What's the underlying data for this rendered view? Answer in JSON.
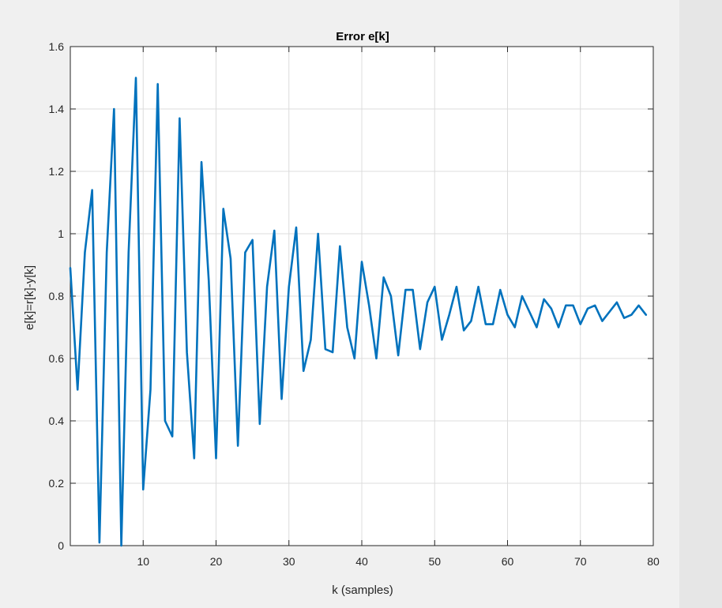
{
  "colors": {
    "background": "#f0f0f0",
    "axes_background": "#ffffff",
    "line": "#0072bd",
    "grid": "#dcdcdc",
    "axis": "#262626"
  },
  "chart_data": {
    "type": "line",
    "title": "Error e[k]",
    "xlabel": "k (samples)",
    "ylabel": "e[k]=r[k]-y[k]",
    "xlim": [
      0,
      80
    ],
    "ylim": [
      0,
      1.6
    ],
    "xticks": [
      10,
      20,
      30,
      40,
      50,
      60,
      70,
      80
    ],
    "xtick_labels": [
      "10",
      "20",
      "30",
      "40",
      "50",
      "60",
      "70",
      "80"
    ],
    "yticks": [
      0,
      0.2,
      0.4,
      0.6,
      0.8,
      1,
      1.2,
      1.4,
      1.6
    ],
    "ytick_labels": [
      "0",
      "0.2",
      "0.4",
      "0.6",
      "0.8",
      "1",
      "1.2",
      "1.4",
      "1.6"
    ],
    "grid": true,
    "series": [
      {
        "color": "#0072bd",
        "x": [
          0,
          1,
          2,
          3,
          4,
          5,
          6,
          7,
          8,
          9,
          10,
          11,
          12,
          13,
          14,
          15,
          16,
          17,
          18,
          19,
          20,
          21,
          22,
          23,
          24,
          25,
          26,
          27,
          28,
          29,
          30,
          31,
          32,
          33,
          34,
          35,
          36,
          37,
          38,
          39,
          40,
          41,
          42,
          43,
          44,
          45,
          46,
          47,
          48,
          49,
          50,
          51,
          52,
          53,
          54,
          55,
          56,
          57,
          58,
          59,
          60,
          61,
          62,
          63,
          64,
          65,
          66,
          67,
          68,
          69,
          70,
          71,
          72,
          73,
          74,
          75,
          76,
          77,
          78,
          79
        ],
        "y": [
          0.89,
          0.5,
          0.94,
          1.14,
          0.01,
          0.94,
          1.4,
          0.0,
          0.94,
          1.5,
          0.18,
          0.5,
          1.48,
          0.4,
          0.35,
          1.37,
          0.62,
          0.28,
          1.23,
          0.85,
          0.28,
          1.08,
          0.92,
          0.32,
          0.94,
          0.98,
          0.39,
          0.83,
          1.01,
          0.47,
          0.83,
          1.02,
          0.56,
          0.66,
          1.0,
          0.63,
          0.62,
          0.96,
          0.7,
          0.6,
          0.91,
          0.77,
          0.6,
          0.86,
          0.8,
          0.61,
          0.82,
          0.82,
          0.63,
          0.78,
          0.83,
          0.66,
          0.74,
          0.83,
          0.69,
          0.72,
          0.83,
          0.71,
          0.71,
          0.82,
          0.74,
          0.7,
          0.8,
          0.75,
          0.7,
          0.79,
          0.76,
          0.7,
          0.77,
          0.77,
          0.71,
          0.76,
          0.77,
          0.72,
          0.75,
          0.78,
          0.73,
          0.74,
          0.77,
          0.74
        ]
      }
    ]
  }
}
